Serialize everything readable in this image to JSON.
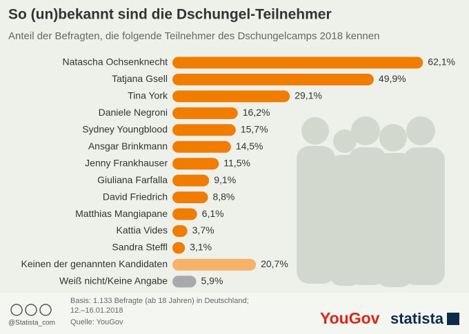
{
  "chart_data": {
    "type": "bar",
    "orientation": "horizontal",
    "title": "So (un)bekannt sind die Dschungel-Teilnehmer",
    "subtitle": "Anteil der Befragten, die folgende Teilnehmer des Dschungelcamps 2018 kennen",
    "categories": [
      "Natascha Ochsenknecht",
      "Tatjana Gsell",
      "Tina York",
      "Daniele Negroni",
      "Sydney Youngblood",
      "Ansgar Brinkmann",
      "Jenny Frankhauser",
      "Giuliana Farfalla",
      "David Friedrich",
      "Matthias Mangiapane",
      "Kattia Vides",
      "Sandra Steffl",
      "Keinen der genannten Kandidaten",
      "Weiß nicht/Keine Angabe"
    ],
    "values": [
      62.1,
      49.9,
      29.1,
      16.2,
      15.7,
      14.5,
      11.5,
      9.1,
      8.8,
      6.1,
      3.7,
      3.1,
      20.7,
      5.9
    ],
    "value_labels": [
      "62,1%",
      "49,9%",
      "29,1%",
      "16,2%",
      "15,7%",
      "14,5%",
      "11,5%",
      "9,1%",
      "8,8%",
      "6,1%",
      "3,7%",
      "3,1%",
      "20,7%",
      "5,9%"
    ],
    "colors": [
      "#f07d00",
      "#f07d00",
      "#f07d00",
      "#f07d00",
      "#f07d00",
      "#f07d00",
      "#f07d00",
      "#f07d00",
      "#f07d00",
      "#f07d00",
      "#f07d00",
      "#f07d00",
      "#f7b26a",
      "#a7a9ac"
    ],
    "footnote": [
      "Basis: 1.133 Befragte (ab 18 Jahren) in Deutschland;",
      "12.–16.01.2018"
    ],
    "source": "Quelle: YouGov",
    "credit": "@Statista_com",
    "brands": [
      "YouGov",
      "statista"
    ]
  }
}
